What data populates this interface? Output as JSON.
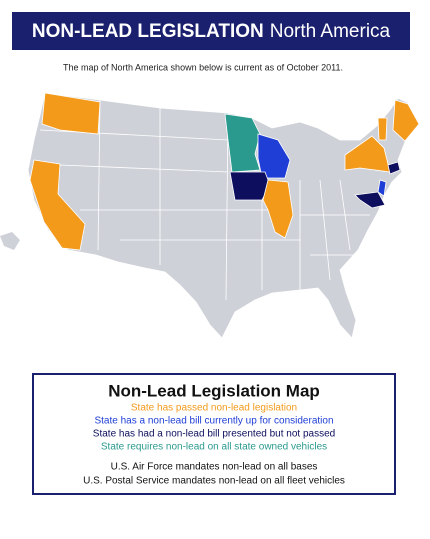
{
  "header": {
    "title": "NON-LEAD LEGISLATION",
    "title_suffix": "North America"
  },
  "subtitle": "The map of North America shown below is current as of October 2011.",
  "legend": {
    "title": "Non-Lead Legislation Map",
    "items": [
      {
        "text": "State has passed non-lead legislation",
        "color": "#f39a1b"
      },
      {
        "text": "State has a non-lead bill currently up for consideration",
        "color": "#1f3ed6"
      },
      {
        "text": "State has had a non-lead bill presented but not passed",
        "color": "#0d0f5e"
      },
      {
        "text": "State requires non-lead on all state owned vehicles",
        "color": "#2a9a8e"
      }
    ],
    "notes": [
      "U.S. Air Force mandates non-lead on all bases",
      "U.S. Postal Service mandates non-lead on all fleet vehicles"
    ]
  }
}
